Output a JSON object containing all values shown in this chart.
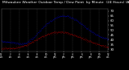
{
  "title": "Milwaukee Weather Outdoor Temp / Dew Point  by Minute  (24 Hours) (Alternate)",
  "bg_color": "#000000",
  "plot_bg_color": "#000000",
  "text_color": "#ffffff",
  "grid_color": "#666666",
  "temp_color": "#0000ff",
  "dew_color": "#ff0000",
  "ylim": [
    28,
    72
  ],
  "yticks": [
    30,
    35,
    40,
    45,
    50,
    55,
    60,
    65,
    70
  ],
  "title_fontsize": 3.2,
  "tick_fontsize": 2.8,
  "xtick_fontsize": 2.0
}
